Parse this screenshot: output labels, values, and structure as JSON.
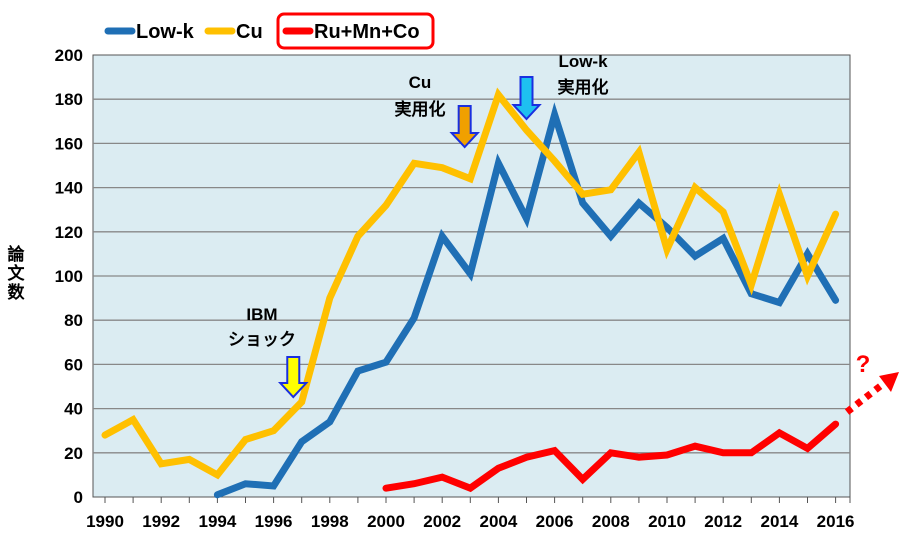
{
  "chart_data": {
    "type": "line",
    "title": "",
    "xlabel": "",
    "ylabel": "論文数",
    "ylim": [
      0,
      200
    ],
    "xlim": [
      1990,
      2016
    ],
    "grid": true,
    "legend_position": "top-left",
    "yticks": [
      "0",
      "20",
      "40",
      "60",
      "80",
      "100",
      "120",
      "140",
      "160",
      "180",
      "200"
    ],
    "xticks": [
      "1990",
      "1992",
      "1994",
      "1996",
      "1998",
      "2000",
      "2002",
      "2004",
      "2006",
      "2008",
      "2010",
      "2012",
      "2014",
      "2016"
    ],
    "series": [
      {
        "name": "Low-k",
        "color": "#1f6fb5",
        "start": 1994,
        "values": [
          1,
          6,
          5,
          25,
          34,
          57,
          61,
          81,
          118,
          101,
          151,
          126,
          173,
          133,
          118,
          133,
          122,
          109,
          117,
          92,
          88,
          110,
          89
        ]
      },
      {
        "name": "Cu",
        "color": "#ffc000",
        "start": 1990,
        "values": [
          28,
          35,
          15,
          17,
          10,
          26,
          30,
          43,
          90,
          118,
          132,
          151,
          149,
          144,
          182,
          166,
          152,
          137,
          139,
          156,
          112,
          140,
          129,
          96,
          137,
          100,
          128
        ]
      },
      {
        "name": "Ru+Mn+Co",
        "color": "#ff0000",
        "start": 2000,
        "values": [
          4,
          6,
          9,
          4,
          13,
          18,
          21,
          8,
          20,
          18,
          19,
          23,
          20,
          20,
          29,
          22,
          33
        ]
      }
    ],
    "annotations": [
      {
        "lines": [
          "IBM",
          "ショック"
        ],
        "year": 1996.7,
        "arrow_color": "#ffff00"
      },
      {
        "lines": [
          "Cu",
          "実用化"
        ],
        "year": 2002.8,
        "arrow_color": "#f0a000"
      },
      {
        "lines": [
          "Low-k",
          "実用化"
        ],
        "year": 2005,
        "arrow_color": "#1ec0f0"
      },
      {
        "lines": [
          "?"
        ],
        "year": 2016.8,
        "arrow_color": "#ff0000"
      }
    ]
  }
}
